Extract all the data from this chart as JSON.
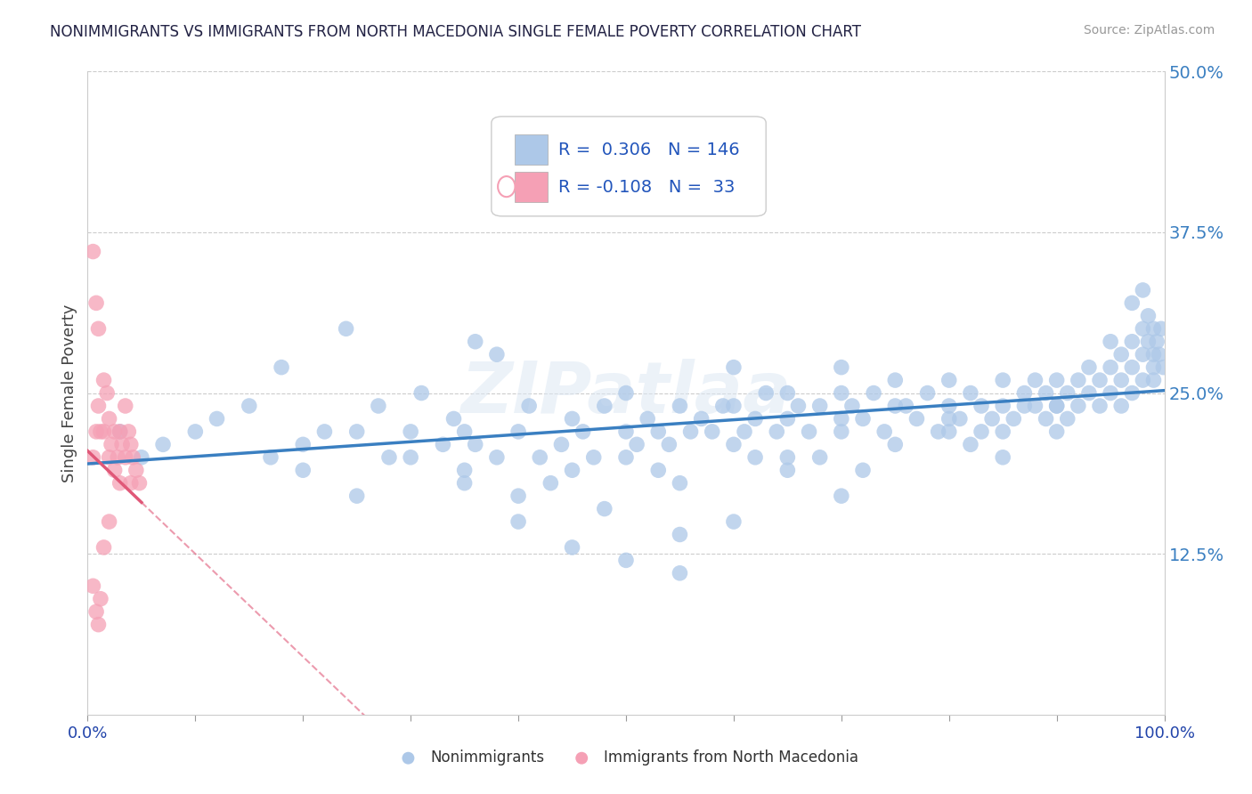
{
  "title": "NONIMMIGRANTS VS IMMIGRANTS FROM NORTH MACEDONIA SINGLE FEMALE POVERTY CORRELATION CHART",
  "source": "Source: ZipAtlas.com",
  "ylabel": "Single Female Poverty",
  "xlim": [
    0,
    1.0
  ],
  "ylim": [
    0,
    0.5
  ],
  "yticks": [
    0.125,
    0.25,
    0.375,
    0.5
  ],
  "ytick_labels": [
    "12.5%",
    "25.0%",
    "37.5%",
    "50.0%"
  ],
  "xticks": [
    0.0,
    0.1,
    0.2,
    0.3,
    0.4,
    0.5,
    0.6,
    0.7,
    0.8,
    0.9,
    1.0
  ],
  "R_nonimm": 0.306,
  "N_nonimm": 146,
  "R_imm": -0.108,
  "N_imm": 33,
  "nonimm_color": "#adc8e8",
  "imm_color": "#f5a0b5",
  "nonimm_line_color": "#3a7fc1",
  "imm_line_color": "#e05878",
  "legend_text_color": "#2255bb",
  "watermark": "ZIPatlaa",
  "background_color": "#ffffff",
  "nonimm_intercept": 0.195,
  "nonimm_slope": 0.057,
  "imm_intercept": 0.205,
  "imm_slope": -0.8,
  "nonimm_scatter": [
    [
      0.03,
      0.22
    ],
    [
      0.05,
      0.2
    ],
    [
      0.07,
      0.21
    ],
    [
      0.1,
      0.22
    ],
    [
      0.12,
      0.23
    ],
    [
      0.15,
      0.24
    ],
    [
      0.17,
      0.2
    ],
    [
      0.18,
      0.27
    ],
    [
      0.2,
      0.21
    ],
    [
      0.22,
      0.22
    ],
    [
      0.24,
      0.3
    ],
    [
      0.25,
      0.22
    ],
    [
      0.27,
      0.24
    ],
    [
      0.28,
      0.2
    ],
    [
      0.3,
      0.22
    ],
    [
      0.31,
      0.25
    ],
    [
      0.33,
      0.21
    ],
    [
      0.34,
      0.23
    ],
    [
      0.35,
      0.19
    ],
    [
      0.36,
      0.21
    ],
    [
      0.38,
      0.2
    ],
    [
      0.38,
      0.28
    ],
    [
      0.4,
      0.22
    ],
    [
      0.41,
      0.24
    ],
    [
      0.42,
      0.2
    ],
    [
      0.44,
      0.21
    ],
    [
      0.45,
      0.23
    ],
    [
      0.46,
      0.22
    ],
    [
      0.47,
      0.2
    ],
    [
      0.48,
      0.24
    ],
    [
      0.5,
      0.22
    ],
    [
      0.5,
      0.25
    ],
    [
      0.51,
      0.21
    ],
    [
      0.52,
      0.23
    ],
    [
      0.53,
      0.22
    ],
    [
      0.54,
      0.21
    ],
    [
      0.55,
      0.24
    ],
    [
      0.55,
      0.14
    ],
    [
      0.56,
      0.22
    ],
    [
      0.57,
      0.23
    ],
    [
      0.58,
      0.22
    ],
    [
      0.59,
      0.24
    ],
    [
      0.6,
      0.24
    ],
    [
      0.6,
      0.27
    ],
    [
      0.61,
      0.22
    ],
    [
      0.62,
      0.23
    ],
    [
      0.63,
      0.25
    ],
    [
      0.64,
      0.22
    ],
    [
      0.65,
      0.23
    ],
    [
      0.65,
      0.25
    ],
    [
      0.66,
      0.24
    ],
    [
      0.67,
      0.22
    ],
    [
      0.68,
      0.24
    ],
    [
      0.68,
      0.2
    ],
    [
      0.7,
      0.25
    ],
    [
      0.7,
      0.23
    ],
    [
      0.7,
      0.27
    ],
    [
      0.71,
      0.24
    ],
    [
      0.72,
      0.23
    ],
    [
      0.73,
      0.25
    ],
    [
      0.74,
      0.22
    ],
    [
      0.75,
      0.24
    ],
    [
      0.75,
      0.26
    ],
    [
      0.76,
      0.24
    ],
    [
      0.77,
      0.23
    ],
    [
      0.78,
      0.25
    ],
    [
      0.79,
      0.22
    ],
    [
      0.8,
      0.24
    ],
    [
      0.8,
      0.22
    ],
    [
      0.8,
      0.26
    ],
    [
      0.81,
      0.23
    ],
    [
      0.82,
      0.25
    ],
    [
      0.83,
      0.24
    ],
    [
      0.83,
      0.22
    ],
    [
      0.84,
      0.23
    ],
    [
      0.85,
      0.24
    ],
    [
      0.85,
      0.2
    ],
    [
      0.85,
      0.26
    ],
    [
      0.86,
      0.23
    ],
    [
      0.87,
      0.25
    ],
    [
      0.87,
      0.24
    ],
    [
      0.88,
      0.24
    ],
    [
      0.88,
      0.26
    ],
    [
      0.89,
      0.25
    ],
    [
      0.89,
      0.23
    ],
    [
      0.9,
      0.24
    ],
    [
      0.9,
      0.22
    ],
    [
      0.9,
      0.26
    ],
    [
      0.91,
      0.25
    ],
    [
      0.91,
      0.23
    ],
    [
      0.92,
      0.26
    ],
    [
      0.92,
      0.24
    ],
    [
      0.93,
      0.25
    ],
    [
      0.93,
      0.27
    ],
    [
      0.94,
      0.26
    ],
    [
      0.94,
      0.24
    ],
    [
      0.95,
      0.27
    ],
    [
      0.95,
      0.29
    ],
    [
      0.95,
      0.25
    ],
    [
      0.96,
      0.28
    ],
    [
      0.96,
      0.26
    ],
    [
      0.96,
      0.24
    ],
    [
      0.97,
      0.29
    ],
    [
      0.97,
      0.27
    ],
    [
      0.97,
      0.32
    ],
    [
      0.97,
      0.25
    ],
    [
      0.98,
      0.3
    ],
    [
      0.98,
      0.28
    ],
    [
      0.98,
      0.26
    ],
    [
      0.98,
      0.33
    ],
    [
      0.985,
      0.31
    ],
    [
      0.985,
      0.29
    ],
    [
      0.99,
      0.3
    ],
    [
      0.99,
      0.28
    ],
    [
      0.99,
      0.27
    ],
    [
      0.99,
      0.26
    ],
    [
      0.993,
      0.29
    ],
    [
      0.995,
      0.28
    ],
    [
      0.997,
      0.3
    ],
    [
      0.999,
      0.27
    ],
    [
      0.45,
      0.13
    ],
    [
      0.5,
      0.12
    ],
    [
      0.55,
      0.11
    ],
    [
      0.6,
      0.15
    ],
    [
      0.65,
      0.19
    ],
    [
      0.7,
      0.17
    ],
    [
      0.36,
      0.29
    ],
    [
      0.4,
      0.15
    ],
    [
      0.48,
      0.16
    ],
    [
      0.35,
      0.22
    ],
    [
      0.43,
      0.18
    ],
    [
      0.53,
      0.19
    ],
    [
      0.62,
      0.2
    ],
    [
      0.72,
      0.19
    ],
    [
      0.82,
      0.21
    ],
    [
      0.2,
      0.19
    ],
    [
      0.25,
      0.17
    ],
    [
      0.3,
      0.2
    ],
    [
      0.35,
      0.18
    ],
    [
      0.4,
      0.17
    ],
    [
      0.45,
      0.19
    ],
    [
      0.5,
      0.2
    ],
    [
      0.55,
      0.18
    ],
    [
      0.6,
      0.21
    ],
    [
      0.65,
      0.2
    ],
    [
      0.7,
      0.22
    ],
    [
      0.75,
      0.21
    ],
    [
      0.8,
      0.23
    ],
    [
      0.85,
      0.22
    ],
    [
      0.9,
      0.24
    ]
  ],
  "imm_scatter": [
    [
      0.005,
      0.2
    ],
    [
      0.008,
      0.22
    ],
    [
      0.01,
      0.24
    ],
    [
      0.012,
      0.22
    ],
    [
      0.015,
      0.26
    ],
    [
      0.015,
      0.22
    ],
    [
      0.018,
      0.25
    ],
    [
      0.02,
      0.23
    ],
    [
      0.02,
      0.2
    ],
    [
      0.022,
      0.21
    ],
    [
      0.025,
      0.22
    ],
    [
      0.025,
      0.19
    ],
    [
      0.028,
      0.2
    ],
    [
      0.03,
      0.22
    ],
    [
      0.03,
      0.18
    ],
    [
      0.032,
      0.21
    ],
    [
      0.035,
      0.2
    ],
    [
      0.035,
      0.24
    ],
    [
      0.038,
      0.22
    ],
    [
      0.04,
      0.21
    ],
    [
      0.04,
      0.18
    ],
    [
      0.042,
      0.2
    ],
    [
      0.045,
      0.19
    ],
    [
      0.048,
      0.18
    ],
    [
      0.005,
      0.36
    ],
    [
      0.008,
      0.32
    ],
    [
      0.01,
      0.3
    ],
    [
      0.005,
      0.1
    ],
    [
      0.008,
      0.08
    ],
    [
      0.01,
      0.07
    ],
    [
      0.012,
      0.09
    ],
    [
      0.015,
      0.13
    ],
    [
      0.02,
      0.15
    ]
  ]
}
